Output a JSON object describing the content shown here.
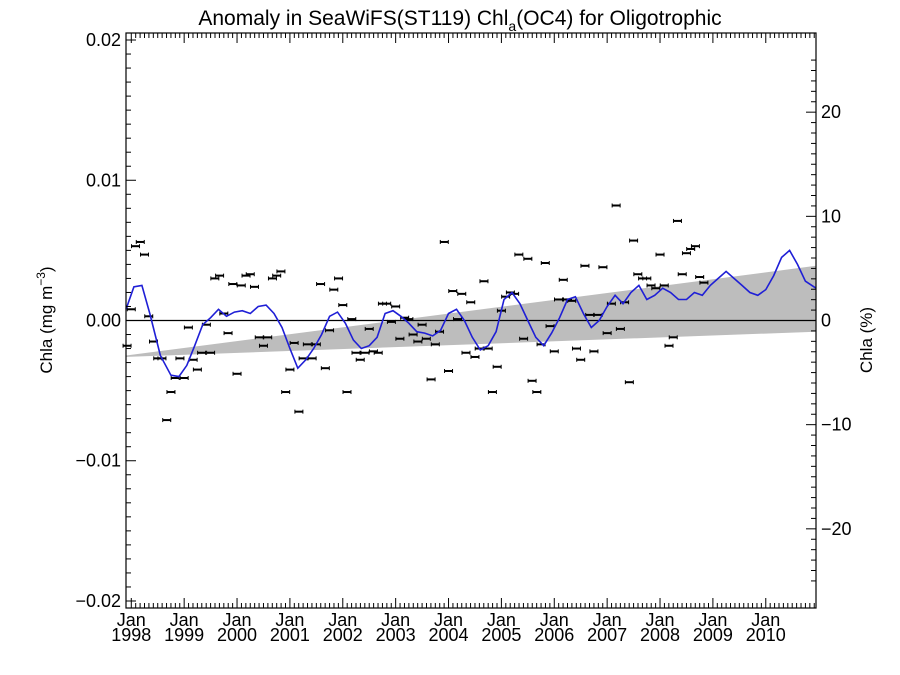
{
  "chart_data": {
    "type": "line",
    "title_main": "Anomaly in SeaWiFS(ST119) Chl",
    "title_sub": "a",
    "title_tail": "(OC4) for Oligotrophic",
    "ylabel_left_main": "Chla (mg m",
    "ylabel_left_sup": "−3",
    "ylabel_left_tail": ")",
    "ylabel_right": "Chla (%)",
    "xlim": [
      1997.9,
      2010.95
    ],
    "ylim": [
      -0.0205,
      0.0205
    ],
    "ylim_right": [
      -27.6,
      27.6
    ],
    "yticks_left": [
      {
        "value": 0.02,
        "label": "0.02"
      },
      {
        "value": 0.01,
        "label": "0.01"
      },
      {
        "value": 0.0,
        "label": "0.00"
      },
      {
        "value": -0.01,
        "label": "−0.01"
      },
      {
        "value": -0.02,
        "label": "−0.02"
      }
    ],
    "yticks_right": [
      {
        "value": 20,
        "label": "20"
      },
      {
        "value": 10,
        "label": "10"
      },
      {
        "value": 0,
        "label": "0"
      },
      {
        "value": -10,
        "label": "−10"
      },
      {
        "value": -20,
        "label": "−20"
      }
    ],
    "xticks": [
      {
        "value": 1998,
        "month": "Jan",
        "year": "1998"
      },
      {
        "value": 1999,
        "month": "Jan",
        "year": "1999"
      },
      {
        "value": 2000,
        "month": "Jan",
        "year": "2000"
      },
      {
        "value": 2001,
        "month": "Jan",
        "year": "2001"
      },
      {
        "value": 2002,
        "month": "Jan",
        "year": "2002"
      },
      {
        "value": 2003,
        "month": "Jan",
        "year": "2003"
      },
      {
        "value": 2004,
        "month": "Jan",
        "year": "2004"
      },
      {
        "value": 2005,
        "month": "Jan",
        "year": "2005"
      },
      {
        "value": 2006,
        "month": "Jan",
        "year": "2006"
      },
      {
        "value": 2007,
        "month": "Jan",
        "year": "2007"
      },
      {
        "value": 2008,
        "month": "Jan",
        "year": "2008"
      },
      {
        "value": 2009,
        "month": "Jan",
        "year": "2009"
      },
      {
        "value": 2010,
        "month": "Jan",
        "year": "2010"
      }
    ],
    "trend_band": {
      "x": [
        1997.9,
        2010.95
      ],
      "upper": [
        -0.0025,
        0.0039
      ],
      "lower": [
        -0.0026,
        -0.0008
      ]
    },
    "points": [
      {
        "x": 1997.92,
        "y": -0.0018
      },
      {
        "x": 1998.0,
        "y": 0.0008
      },
      {
        "x": 1998.08,
        "y": 0.0053
      },
      {
        "x": 1998.17,
        "y": 0.0056
      },
      {
        "x": 1998.25,
        "y": 0.0047
      },
      {
        "x": 1998.33,
        "y": 0.0003
      },
      {
        "x": 1998.42,
        "y": -0.0015
      },
      {
        "x": 1998.5,
        "y": -0.0027
      },
      {
        "x": 1998.58,
        "y": -0.0027
      },
      {
        "x": 1998.67,
        "y": -0.0071
      },
      {
        "x": 1998.75,
        "y": -0.0051
      },
      {
        "x": 1998.83,
        "y": -0.0041
      },
      {
        "x": 1998.92,
        "y": -0.0027
      },
      {
        "x": 1999.0,
        "y": -0.0041
      },
      {
        "x": 1999.08,
        "y": -0.0005
      },
      {
        "x": 1999.17,
        "y": -0.0028
      },
      {
        "x": 1999.25,
        "y": -0.0035
      },
      {
        "x": 1999.33,
        "y": -0.0023
      },
      {
        "x": 1999.42,
        "y": -0.0003
      },
      {
        "x": 1999.5,
        "y": -0.0023
      },
      {
        "x": 1999.58,
        "y": 0.003
      },
      {
        "x": 1999.67,
        "y": 0.0032
      },
      {
        "x": 1999.75,
        "y": 0.0005
      },
      {
        "x": 1999.83,
        "y": -0.0009
      },
      {
        "x": 1999.92,
        "y": 0.0026
      },
      {
        "x": 2000.0,
        "y": -0.0038
      },
      {
        "x": 2000.08,
        "y": 0.0025
      },
      {
        "x": 2000.17,
        "y": 0.0032
      },
      {
        "x": 2000.25,
        "y": 0.0033
      },
      {
        "x": 2000.33,
        "y": 0.0024
      },
      {
        "x": 2000.42,
        "y": -0.0012
      },
      {
        "x": 2000.5,
        "y": -0.0018
      },
      {
        "x": 2000.58,
        "y": -0.0012
      },
      {
        "x": 2000.67,
        "y": 0.003
      },
      {
        "x": 2000.75,
        "y": 0.0032
      },
      {
        "x": 2000.83,
        "y": 0.0035
      },
      {
        "x": 2000.92,
        "y": -0.0051
      },
      {
        "x": 2001.0,
        "y": -0.0035
      },
      {
        "x": 2001.08,
        "y": -0.0016
      },
      {
        "x": 2001.17,
        "y": -0.0065
      },
      {
        "x": 2001.25,
        "y": -0.0027
      },
      {
        "x": 2001.33,
        "y": -0.0017
      },
      {
        "x": 2001.42,
        "y": -0.0027
      },
      {
        "x": 2001.5,
        "y": -0.0017
      },
      {
        "x": 2001.58,
        "y": 0.0026
      },
      {
        "x": 2001.67,
        "y": -0.0034
      },
      {
        "x": 2001.75,
        "y": -0.0007
      },
      {
        "x": 2001.83,
        "y": 0.0022
      },
      {
        "x": 2001.92,
        "y": 0.003
      },
      {
        "x": 2002.0,
        "y": 0.0011
      },
      {
        "x": 2002.08,
        "y": -0.0051
      },
      {
        "x": 2002.17,
        "y": 0.0001
      },
      {
        "x": 2002.25,
        "y": -0.0023
      },
      {
        "x": 2002.33,
        "y": -0.0028
      },
      {
        "x": 2002.42,
        "y": -0.0023
      },
      {
        "x": 2002.5,
        "y": -0.0006
      },
      {
        "x": 2002.58,
        "y": -0.0022
      },
      {
        "x": 2002.67,
        "y": -0.0023
      },
      {
        "x": 2002.75,
        "y": 0.0012
      },
      {
        "x": 2002.83,
        "y": 0.0012
      },
      {
        "x": 2002.92,
        "y": -0.0001
      },
      {
        "x": 2003.0,
        "y": 0.001
      },
      {
        "x": 2003.08,
        "y": -0.0013
      },
      {
        "x": 2003.17,
        "y": 0.0002
      },
      {
        "x": 2003.25,
        "y": 0.0001
      },
      {
        "x": 2003.33,
        "y": -0.001
      },
      {
        "x": 2003.42,
        "y": -0.0015
      },
      {
        "x": 2003.5,
        "y": -0.0003
      },
      {
        "x": 2003.58,
        "y": -0.0013
      },
      {
        "x": 2003.67,
        "y": -0.0042
      },
      {
        "x": 2003.75,
        "y": -0.0017
      },
      {
        "x": 2003.83,
        "y": -0.0008
      },
      {
        "x": 2003.92,
        "y": 0.0056
      },
      {
        "x": 2004.0,
        "y": -0.0036
      },
      {
        "x": 2004.08,
        "y": 0.0021
      },
      {
        "x": 2004.17,
        "y": 0.0001
      },
      {
        "x": 2004.25,
        "y": 0.0019
      },
      {
        "x": 2004.33,
        "y": -0.0023
      },
      {
        "x": 2004.42,
        "y": 0.0013
      },
      {
        "x": 2004.5,
        "y": -0.0026
      },
      {
        "x": 2004.58,
        "y": -0.002
      },
      {
        "x": 2004.67,
        "y": 0.0028
      },
      {
        "x": 2004.75,
        "y": -0.002
      },
      {
        "x": 2004.83,
        "y": -0.0051
      },
      {
        "x": 2004.92,
        "y": -0.0033
      },
      {
        "x": 2005.0,
        "y": 0.0007
      },
      {
        "x": 2005.08,
        "y": 0.0017
      },
      {
        "x": 2005.17,
        "y": 0.002
      },
      {
        "x": 2005.25,
        "y": 0.0019
      },
      {
        "x": 2005.33,
        "y": 0.0047
      },
      {
        "x": 2005.42,
        "y": -0.0013
      },
      {
        "x": 2005.5,
        "y": 0.0044
      },
      {
        "x": 2005.58,
        "y": -0.0043
      },
      {
        "x": 2005.67,
        "y": -0.0051
      },
      {
        "x": 2005.75,
        "y": -0.0017
      },
      {
        "x": 2005.83,
        "y": 0.0041
      },
      {
        "x": 2005.92,
        "y": -0.0004
      },
      {
        "x": 2006.0,
        "y": -0.0022
      },
      {
        "x": 2006.08,
        "y": 0.0015
      },
      {
        "x": 2006.17,
        "y": 0.0029
      },
      {
        "x": 2006.25,
        "y": 0.0015
      },
      {
        "x": 2006.33,
        "y": 0.0014
      },
      {
        "x": 2006.42,
        "y": -0.002
      },
      {
        "x": 2006.5,
        "y": -0.0028
      },
      {
        "x": 2006.58,
        "y": 0.0039
      },
      {
        "x": 2006.67,
        "y": 0.0004
      },
      {
        "x": 2006.75,
        "y": -0.0022
      },
      {
        "x": 2006.83,
        "y": 0.0004
      },
      {
        "x": 2006.92,
        "y": 0.0038
      },
      {
        "x": 2007.0,
        "y": -0.0009
      },
      {
        "x": 2007.08,
        "y": 0.0012
      },
      {
        "x": 2007.17,
        "y": 0.0082
      },
      {
        "x": 2007.25,
        "y": -0.0006
      },
      {
        "x": 2007.33,
        "y": 0.0013
      },
      {
        "x": 2007.42,
        "y": -0.0044
      },
      {
        "x": 2007.5,
        "y": 0.0057
      },
      {
        "x": 2007.58,
        "y": 0.0033
      },
      {
        "x": 2007.67,
        "y": 0.003
      },
      {
        "x": 2007.75,
        "y": 0.003
      },
      {
        "x": 2007.83,
        "y": 0.0025
      },
      {
        "x": 2007.92,
        "y": 0.0023
      },
      {
        "x": 2008.0,
        "y": 0.0047
      },
      {
        "x": 2008.08,
        "y": 0.0025
      },
      {
        "x": 2008.17,
        "y": -0.0018
      },
      {
        "x": 2008.25,
        "y": -0.0012
      },
      {
        "x": 2008.33,
        "y": 0.0071
      },
      {
        "x": 2008.42,
        "y": 0.0033
      },
      {
        "x": 2008.5,
        "y": 0.0048
      },
      {
        "x": 2008.58,
        "y": 0.0051
      },
      {
        "x": 2008.67,
        "y": 0.0053
      },
      {
        "x": 2008.75,
        "y": 0.0031
      },
      {
        "x": 2008.83,
        "y": 0.0027
      }
    ],
    "smooth_line": {
      "color": "#1f1fd6",
      "x": [
        1997.9,
        1998.05,
        1998.2,
        1998.35,
        1998.55,
        1998.75,
        1998.9,
        1999.05,
        1999.2,
        1999.35,
        1999.5,
        1999.65,
        1999.8,
        1999.95,
        2000.1,
        2000.25,
        2000.4,
        2000.55,
        2000.7,
        2000.85,
        2001.0,
        2001.15,
        2001.3,
        2001.45,
        2001.6,
        2001.75,
        2001.9,
        2002.05,
        2002.2,
        2002.35,
        2002.5,
        2002.65,
        2002.8,
        2002.95,
        2003.1,
        2003.25,
        2003.4,
        2003.55,
        2003.7,
        2003.85,
        2004.0,
        2004.15,
        2004.3,
        2004.45,
        2004.6,
        2004.75,
        2004.9,
        2005.05,
        2005.2,
        2005.35,
        2005.5,
        2005.65,
        2005.8,
        2005.95,
        2006.1,
        2006.25,
        2006.4,
        2006.55,
        2006.7,
        2006.85,
        2007.0,
        2007.15,
        2007.3,
        2007.45,
        2007.6,
        2007.75,
        2007.9,
        2008.05,
        2008.2,
        2008.35,
        2008.5,
        2008.65,
        2008.8,
        2008.95,
        2009.1,
        2009.25,
        2009.4,
        2009.55,
        2009.7,
        2009.85,
        2010.0,
        2010.15,
        2010.3,
        2010.45,
        2010.6,
        2010.75,
        2010.95
      ],
      "y": [
        0.0008,
        0.0024,
        0.0025,
        0.0005,
        -0.0025,
        -0.0039,
        -0.004,
        -0.0032,
        -0.0018,
        -0.0003,
        0.0002,
        0.0008,
        0.0003,
        0.0006,
        0.0007,
        0.0005,
        0.001,
        0.0011,
        0.0005,
        -0.0005,
        -0.002,
        -0.0034,
        -0.0028,
        -0.002,
        -0.001,
        0.0003,
        0.0006,
        -0.0002,
        -0.0014,
        -0.002,
        -0.0018,
        -0.0012,
        0.0005,
        0.0007,
        0.0003,
        -0.0002,
        -0.0008,
        -0.0009,
        -0.0011,
        -0.0007,
        0.0005,
        0.0008,
        0.0,
        -0.0012,
        -0.0021,
        -0.0018,
        -0.0008,
        0.0015,
        0.002,
        0.0012,
        0.0,
        -0.0012,
        -0.0018,
        -0.0009,
        0.0002,
        0.0015,
        0.0017,
        0.0005,
        -0.0005,
        0.0,
        0.001,
        0.0018,
        0.0012,
        0.002,
        0.0025,
        0.0015,
        0.0018,
        0.0023,
        0.002,
        0.0015,
        0.0015,
        0.002,
        0.0018,
        0.0025,
        0.003,
        0.0035,
        0.003,
        0.0025,
        0.002,
        0.0018,
        0.0022,
        0.0032,
        0.0045,
        0.005,
        0.004,
        0.0028,
        0.0023
      ]
    }
  }
}
